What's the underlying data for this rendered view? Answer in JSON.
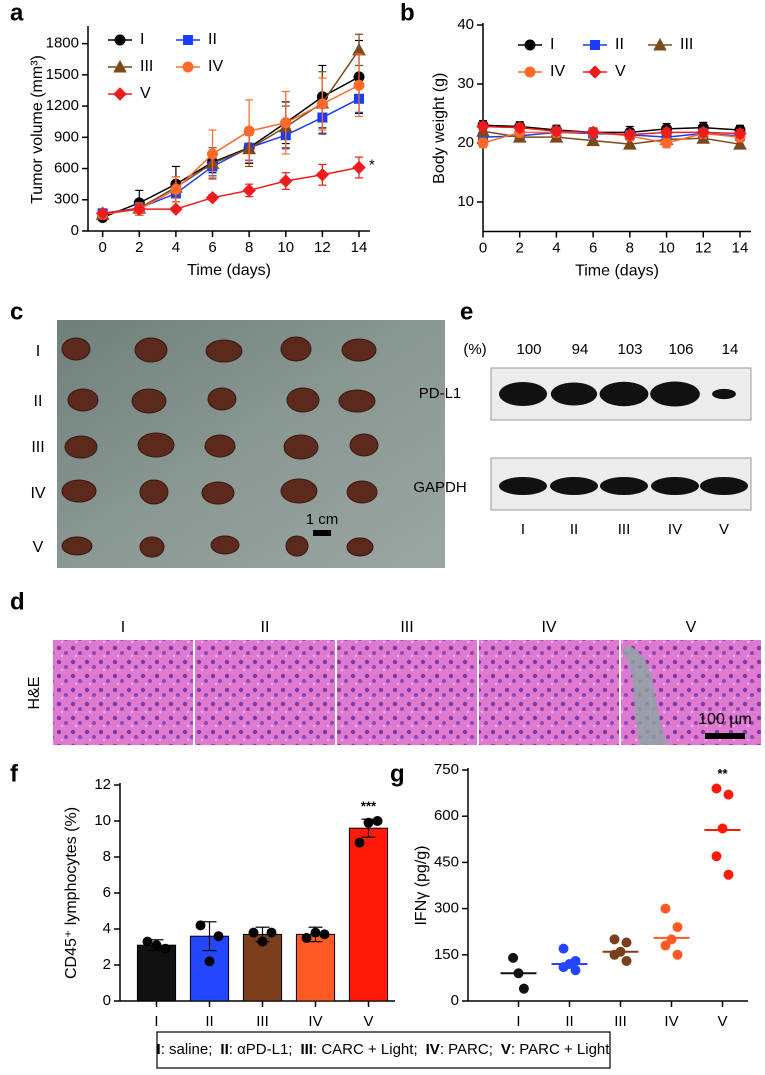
{
  "panel_labels": [
    "a",
    "b",
    "c",
    "d",
    "e",
    "f",
    "g"
  ],
  "chart_data": [
    {
      "type": "line",
      "xlabel": "Time (days)",
      "ylabel": "Tumor volume (mm³)",
      "x": [
        0,
        2,
        4,
        6,
        8,
        10,
        12,
        14
      ],
      "xlim": [
        -0.8,
        14.6
      ],
      "xticks": [
        0,
        2,
        4,
        6,
        8,
        10,
        12,
        14
      ],
      "ylim": [
        0,
        1950
      ],
      "yticks": [
        0,
        300,
        600,
        900,
        1200,
        1500,
        1800
      ],
      "annotation": "*",
      "series": [
        {
          "name": "I",
          "color": "#000000",
          "marker": "circle",
          "values": [
            130,
            270,
            450,
            660,
            800,
            1040,
            1290,
            1480
          ],
          "errors": [
            20,
            120,
            170,
            100,
            150,
            200,
            300,
            350
          ]
        },
        {
          "name": "II",
          "color": "#1a3cff",
          "marker": "square",
          "values": [
            170,
            220,
            360,
            620,
            800,
            920,
            1090,
            1270
          ],
          "errors": [
            30,
            40,
            80,
            90,
            120,
            130,
            150,
            130
          ]
        },
        {
          "name": "III",
          "color": "#7a4a1e",
          "marker": "triangle",
          "values": [
            160,
            220,
            420,
            650,
            790,
            1000,
            1230,
            1740
          ],
          "errors": [
            20,
            50,
            100,
            150,
            170,
            200,
            300,
            150
          ]
        },
        {
          "name": "IV",
          "color": "#ff6a2a",
          "marker": "circle",
          "values": [
            160,
            210,
            400,
            740,
            960,
            1040,
            1220,
            1400
          ],
          "errors": [
            20,
            60,
            120,
            230,
            300,
            300,
            250,
            300
          ]
        },
        {
          "name": "V",
          "color": "#ee1c1c",
          "marker": "diamond",
          "values": [
            170,
            210,
            210,
            320,
            390,
            480,
            540,
            610
          ],
          "errors": [
            20,
            20,
            20,
            30,
            60,
            80,
            100,
            100
          ]
        }
      ]
    },
    {
      "type": "line",
      "xlabel": "Time (days)",
      "ylabel": "Body weight (g)",
      "x": [
        0,
        2,
        4,
        6,
        8,
        10,
        12,
        14
      ],
      "xlim": [
        0,
        14.6
      ],
      "xticks": [
        0,
        2,
        4,
        6,
        8,
        10,
        12,
        14
      ],
      "ylim": [
        5,
        40
      ],
      "yticks": [
        10,
        20,
        30,
        40
      ],
      "series": [
        {
          "name": "I",
          "color": "#000000",
          "marker": "circle",
          "values": [
            23,
            22.8,
            22.2,
            21.8,
            21.8,
            22.4,
            22.6,
            22.2
          ],
          "errors": [
            0.8,
            0.8,
            0.8,
            0.8,
            1,
            0.9,
            0.9,
            0.8
          ]
        },
        {
          "name": "II",
          "color": "#1a3cff",
          "marker": "square",
          "values": [
            21,
            21.2,
            21.8,
            21.6,
            21.4,
            21,
            21.6,
            21.2
          ],
          "errors": [
            0.6,
            0.6,
            0.7,
            0.6,
            0.7,
            0.7,
            0.7,
            0.6
          ]
        },
        {
          "name": "III",
          "color": "#7a4a1e",
          "marker": "triangle",
          "values": [
            22,
            21,
            21,
            20.4,
            19.8,
            20.6,
            20.8,
            19.8
          ],
          "errors": [
            0.7,
            0.7,
            0.7,
            0.7,
            0.7,
            0.7,
            0.7,
            0.7
          ]
        },
        {
          "name": "IV",
          "color": "#ff6a2a",
          "marker": "circle",
          "values": [
            20,
            21.8,
            21.8,
            21.8,
            21.2,
            20,
            21.6,
            21
          ],
          "errors": [
            0.8,
            0.8,
            0.8,
            0.8,
            0.8,
            0.8,
            0.8,
            0.8
          ]
        },
        {
          "name": "V",
          "color": "#ee1c1c",
          "marker": "diamond",
          "values": [
            22.8,
            22.6,
            22,
            21.8,
            21.4,
            21.8,
            21.8,
            21.6
          ],
          "errors": [
            0.7,
            0.7,
            0.7,
            0.7,
            0.7,
            0.7,
            0.7,
            0.7
          ]
        }
      ]
    },
    {
      "type": "bar",
      "ylabel": "CD45⁺ lymphocytes (%)",
      "categories": [
        "I",
        "II",
        "III",
        "IV",
        "V"
      ],
      "colors": [
        "#111111",
        "#2446ff",
        "#7b3f1c",
        "#ff5a24",
        "#ff1a0a"
      ],
      "values": [
        3.1,
        3.6,
        3.7,
        3.7,
        9.6
      ],
      "errors": [
        0.3,
        0.8,
        0.4,
        0.4,
        0.5
      ],
      "points": [
        [
          3.3,
          3.1,
          2.9
        ],
        [
          4.2,
          2.2,
          3.6
        ],
        [
          3.8,
          3.3,
          3.8
        ],
        [
          3.5,
          3.8,
          3.7
        ],
        [
          8.8,
          9.9,
          10.0
        ]
      ],
      "ylim": [
        0,
        12
      ],
      "yticks": [
        0,
        2,
        4,
        6,
        8,
        10,
        12
      ],
      "annotation": "***"
    },
    {
      "type": "strip",
      "ylabel": "IFNγ (pg/g)",
      "categories": [
        "I",
        "II",
        "III",
        "IV",
        "V"
      ],
      "colors": [
        "#111111",
        "#2446ff",
        "#7b3f1c",
        "#ff5a24",
        "#ff1a0a"
      ],
      "points": [
        [
          140,
          90,
          40
        ],
        [
          170,
          130,
          120,
          110,
          100
        ],
        [
          200,
          190,
          160,
          150,
          130
        ],
        [
          300,
          240,
          200,
          180,
          150
        ],
        [
          690,
          670,
          560,
          470,
          410
        ]
      ],
      "means": [
        90,
        120,
        160,
        205,
        555
      ],
      "ylim": [
        0,
        750
      ],
      "yticks": [
        0,
        150,
        300,
        450,
        600,
        750
      ],
      "annotation": "**"
    }
  ],
  "photo": {
    "rows": [
      "I",
      "II",
      "III",
      "IV",
      "V"
    ],
    "scale_bar": "1 cm"
  },
  "blot": {
    "unit": "(%)",
    "values": [
      100,
      94,
      103,
      106,
      14
    ],
    "proteins": [
      "PD-L1",
      "GAPDH"
    ],
    "lanes": [
      "I",
      "II",
      "III",
      "IV",
      "V"
    ]
  },
  "histology": {
    "stain": "H&E",
    "groups": [
      "I",
      "II",
      "III",
      "IV",
      "V"
    ],
    "scale_bar": "100 µm"
  },
  "legend": [
    {
      "key": "I",
      "text": ": saline;"
    },
    {
      "key": "II",
      "text": ": αPD-L1;"
    },
    {
      "key": "III",
      "text": ": CARC + Light;"
    },
    {
      "key": "IV",
      "text": ": PARC;"
    },
    {
      "key": "V",
      "text": ": PARC + Light"
    }
  ]
}
